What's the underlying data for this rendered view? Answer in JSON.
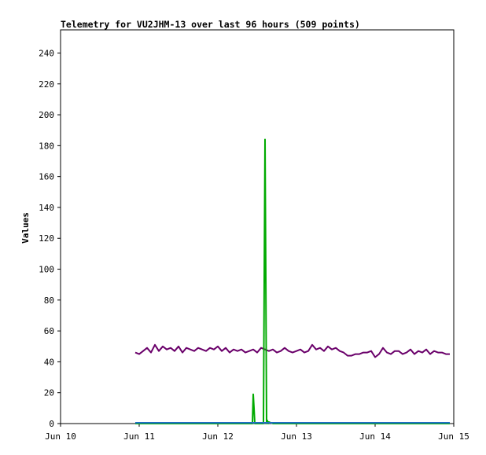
{
  "chart_data": {
    "type": "line",
    "title": "Telemetry for VU2JHM-13 over last 96 hours (509 points)",
    "xlabel": "",
    "ylabel": "Values",
    "xlim": [
      "Jun 10",
      "Jun 15"
    ],
    "ylim": [
      0,
      255
    ],
    "x_ticks": [
      "Jun 10",
      "Jun 11",
      "Jun 12",
      "Jun 13",
      "Jun 14",
      "Jun 15"
    ],
    "y_ticks": [
      0,
      20,
      40,
      60,
      80,
      100,
      120,
      140,
      160,
      180,
      200,
      220,
      240
    ],
    "grid": false,
    "legend": "none",
    "series": [
      {
        "color": "#6a006a",
        "x_days": [
          0.95,
          1.0,
          1.05,
          1.1,
          1.15,
          1.2,
          1.25,
          1.3,
          1.35,
          1.4,
          1.45,
          1.5,
          1.55,
          1.6,
          1.65,
          1.7,
          1.75,
          1.8,
          1.85,
          1.9,
          1.95,
          2.0,
          2.05,
          2.1,
          2.15,
          2.2,
          2.25,
          2.3,
          2.35,
          2.4,
          2.45,
          2.5,
          2.55,
          2.6,
          2.65,
          2.7,
          2.75,
          2.8,
          2.85,
          2.9,
          2.95,
          3.0,
          3.05,
          3.1,
          3.15,
          3.2,
          3.25,
          3.3,
          3.35,
          3.4,
          3.45,
          3.5,
          3.55,
          3.6,
          3.65,
          3.7,
          3.75,
          3.8,
          3.85,
          3.9,
          3.95,
          4.0,
          4.05,
          4.1,
          4.15,
          4.2,
          4.25,
          4.3,
          4.35,
          4.4,
          4.45,
          4.5,
          4.55,
          4.6,
          4.65,
          4.7,
          4.75,
          4.8,
          4.85,
          4.9,
          4.95
        ],
        "values": [
          46,
          45,
          47,
          49,
          46,
          51,
          47,
          50,
          48,
          49,
          47,
          50,
          46,
          49,
          48,
          47,
          49,
          48,
          47,
          49,
          48,
          50,
          47,
          49,
          46,
          48,
          47,
          48,
          46,
          47,
          48,
          46,
          49,
          48,
          47,
          48,
          46,
          47,
          49,
          47,
          46,
          47,
          48,
          46,
          47,
          51,
          48,
          49,
          47,
          50,
          48,
          49,
          47,
          46,
          44,
          44,
          45,
          45,
          46,
          46,
          47,
          43,
          45,
          49,
          46,
          45,
          47,
          47,
          45,
          46,
          48,
          45,
          47,
          46,
          48,
          45,
          47,
          46,
          46,
          45,
          45
        ]
      },
      {
        "color": "#00aa00",
        "x_days": [
          0.95,
          2.4,
          2.44,
          2.45,
          2.46,
          2.47,
          2.5,
          2.55,
          2.58,
          2.59,
          2.6,
          2.61,
          2.62,
          2.63,
          2.64,
          2.65,
          2.7,
          2.75,
          4.95
        ],
        "values": [
          0,
          0,
          0,
          19,
          10,
          0,
          0,
          0,
          0,
          92,
          184,
          94,
          0,
          2,
          0,
          1,
          0,
          0,
          0
        ]
      },
      {
        "color": "#1f6ec2",
        "x_days": [
          0.95,
          4.95
        ],
        "values": [
          0.5,
          0.5
        ]
      }
    ]
  }
}
